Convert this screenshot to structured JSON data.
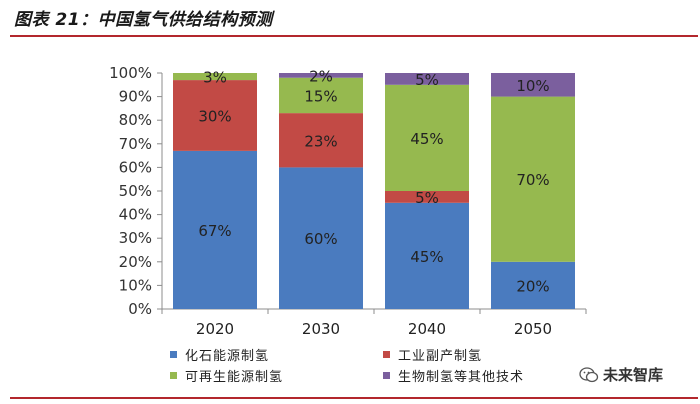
{
  "header": {
    "title": "图表 21：中国氢气供给结构预测"
  },
  "colors": {
    "accent": "#b3272d",
    "fossil": "#4a7bbf",
    "industrial": "#c24a45",
    "renewable": "#96b94f",
    "other": "#7b5f9e"
  },
  "chart_data": {
    "type": "bar",
    "stacked": true,
    "categories": [
      "2020",
      "2030",
      "2040",
      "2050"
    ],
    "series": [
      {
        "name": "化石能源制氢",
        "values": [
          67,
          60,
          45,
          20
        ],
        "labels": [
          "67%",
          "60%",
          "45%",
          "20%"
        ],
        "color": "#4a7bbf"
      },
      {
        "name": "工业副产制氢",
        "values": [
          30,
          23,
          5,
          0
        ],
        "labels": [
          "30%",
          "23%",
          "5%",
          ""
        ],
        "color": "#c24a45"
      },
      {
        "name": "可再生能源制氢",
        "values": [
          3,
          15,
          45,
          70
        ],
        "labels": [
          "3%",
          "15%",
          "45%",
          "70%"
        ],
        "color": "#96b94f"
      },
      {
        "name": "生物制氢等其他技术",
        "values": [
          0,
          2,
          5,
          10
        ],
        "labels": [
          "",
          "2%",
          "5%",
          "10%"
        ],
        "color": "#7b5f9e"
      }
    ],
    "yticks": [
      "0%",
      "10%",
      "20%",
      "30%",
      "40%",
      "50%",
      "60%",
      "70%",
      "80%",
      "90%",
      "100%"
    ],
    "ylim": [
      0,
      100
    ],
    "legend_position": "bottom"
  },
  "watermark": {
    "text": "未来智库",
    "icon": "wechat-icon"
  }
}
